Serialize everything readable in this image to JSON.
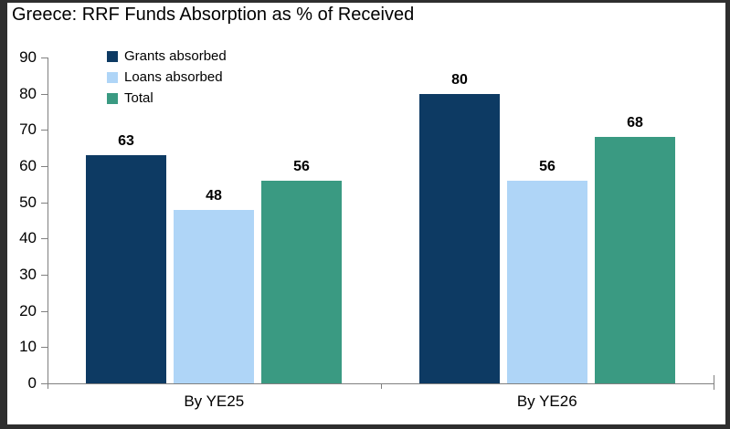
{
  "title": "Greece: RRF Funds Absorption as % of Received",
  "chart_data": {
    "type": "bar",
    "title": "Greece: RRF Funds Absorption as % of Received",
    "categories": [
      "By YE25",
      "By YE26"
    ],
    "series": [
      {
        "name": "Grants absorbed",
        "values": [
          63,
          80
        ],
        "color": "#0d3a63"
      },
      {
        "name": "Loans absorbed",
        "values": [
          48,
          56
        ],
        "color": "#afd5f7"
      },
      {
        "name": "Total",
        "values": [
          56,
          68
        ],
        "color": "#3a9a82"
      }
    ],
    "xlabel": "",
    "ylabel": "",
    "ylim": [
      0,
      90
    ],
    "yticks": [
      0,
      10,
      20,
      30,
      40,
      50,
      60,
      70,
      80,
      90
    ],
    "grid": false,
    "data_labels": true,
    "legend_position": "upper-left-inside"
  },
  "colors": {
    "axis": "#808080",
    "text": "#000000",
    "frame": "#2e2e2e",
    "background": "#ffffff"
  }
}
